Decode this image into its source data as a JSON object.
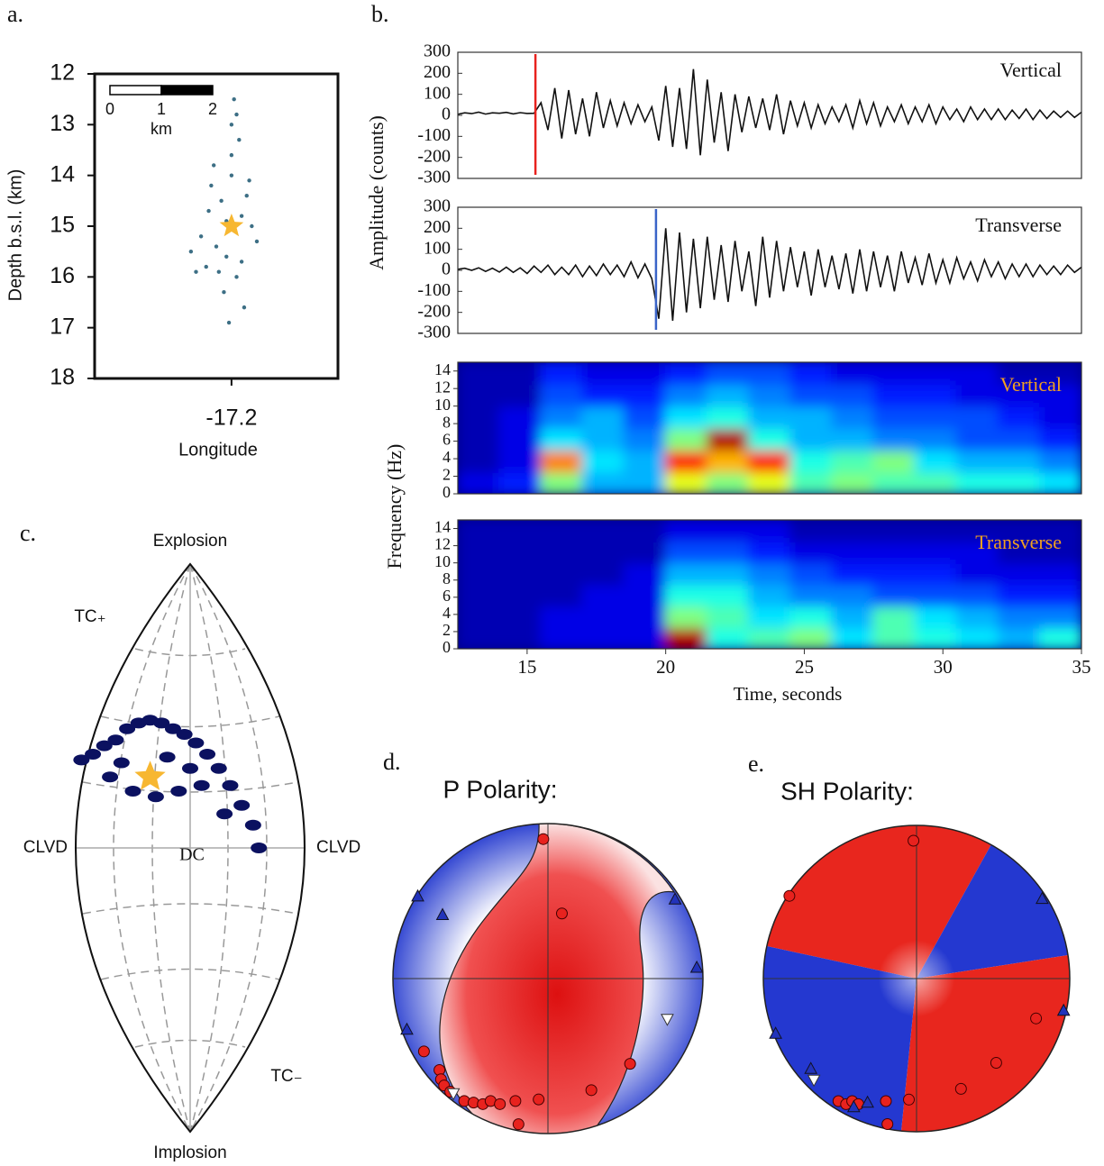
{
  "chart_data": [
    {
      "type": "scatter",
      "panel": "a.",
      "ylabel": "Depth b.s.l. (km)",
      "xlabel": "Longitude",
      "xlim": [
        -17.227,
        -17.179
      ],
      "ylim": [
        18,
        12
      ],
      "xticks": [
        -17.2
      ],
      "yticks": [
        12,
        13,
        14,
        15,
        16,
        17,
        18
      ],
      "series": [
        {
          "color": "#3d6f85",
          "x": [
            -17.204,
            -17.202,
            -17.2,
            -17.198,
            -17.206,
            -17.196,
            -17.201,
            -17.199,
            -17.203,
            -17.197,
            -17.205,
            -17.2,
            -17.2015,
            -17.1985,
            -17.208,
            -17.195,
            -17.2045,
            -17.1975,
            -17.2025,
            -17.1995,
            -17.207,
            -17.1965,
            -17.2005,
            -17.2035,
            -17.199,
            -17.201,
            -17.198,
            -17.2
          ],
          "y": [
            14.2,
            14.5,
            14.0,
            14.8,
            15.2,
            15.0,
            15.6,
            16.0,
            15.4,
            14.4,
            15.8,
            13.6,
            16.3,
            13.3,
            15.5,
            15.3,
            14.7,
            16.6,
            15.9,
            12.5,
            15.9,
            14.1,
            16.9,
            13.8,
            12.8,
            14.9,
            15.7,
            13.0
          ]
        }
      ],
      "star": {
        "x": -17.2,
        "y": 15,
        "color": "#f7b731"
      },
      "scalebar": {
        "ticks": [
          0,
          1,
          2
        ],
        "label": "km"
      }
    },
    {
      "type": "line",
      "panel": "b.",
      "ylabel": "Amplitude (counts)",
      "annotation": "Vertical",
      "color": "#111111",
      "xlim": [
        12.5,
        35
      ],
      "ylim": [
        -300,
        300
      ],
      "yticks": [
        -300,
        -200,
        -100,
        0,
        100,
        200,
        300
      ],
      "pick": 15.3,
      "pick_color": "#e8221e",
      "x": [
        12.5,
        12.75,
        13,
        13.25,
        13.5,
        13.75,
        14,
        14.25,
        14.5,
        14.75,
        15,
        15.25,
        15.5,
        15.75,
        16,
        16.25,
        16.5,
        16.75,
        17,
        17.25,
        17.5,
        17.75,
        18,
        18.25,
        18.5,
        18.75,
        19,
        19.25,
        19.5,
        19.75,
        20,
        20.25,
        20.5,
        20.75,
        21,
        21.25,
        21.5,
        21.75,
        22,
        22.25,
        22.5,
        22.75,
        23,
        23.25,
        23.5,
        23.75,
        24,
        24.25,
        24.5,
        24.75,
        25,
        25.25,
        25.5,
        25.75,
        26,
        26.25,
        26.5,
        26.75,
        27,
        27.25,
        27.5,
        27.75,
        28,
        28.25,
        28.5,
        28.75,
        29,
        29.25,
        29.5,
        29.75,
        30,
        30.25,
        30.5,
        30.75,
        31,
        31.25,
        31.5,
        31.75,
        32,
        32.25,
        32.5,
        32.75,
        33,
        33.25,
        33.5,
        33.75,
        34,
        34.25,
        34.5,
        34.75,
        35
      ],
      "values": [
        5,
        12,
        8,
        15,
        6,
        12,
        10,
        14,
        7,
        13,
        9,
        10,
        60,
        -70,
        130,
        -110,
        120,
        -90,
        80,
        -100,
        110,
        -60,
        70,
        -50,
        60,
        -40,
        50,
        -30,
        40,
        -120,
        140,
        -150,
        130,
        -160,
        220,
        -190,
        170,
        -130,
        110,
        -170,
        100,
        -80,
        90,
        -60,
        80,
        -70,
        100,
        -90,
        70,
        -50,
        60,
        -60,
        50,
        -40,
        40,
        -30,
        50,
        -60,
        70,
        -40,
        60,
        -50,
        40,
        -30,
        50,
        -40,
        40,
        -30,
        50,
        -40,
        40,
        -20,
        30,
        -30,
        40,
        -20,
        30,
        -20,
        30,
        -20,
        25,
        -15,
        30,
        -20,
        25,
        -15,
        20,
        -10,
        20,
        -10,
        15
      ]
    },
    {
      "type": "line",
      "annotation": "Transverse",
      "color": "#111111",
      "xlim": [
        12.5,
        35
      ],
      "ylim": [
        -300,
        300
      ],
      "yticks": [
        -300,
        -200,
        -100,
        0,
        100,
        200,
        300
      ],
      "pick": 19.65,
      "pick_color": "#3a64c8",
      "x": [
        12.5,
        12.75,
        13,
        13.25,
        13.5,
        13.75,
        14,
        14.25,
        14.5,
        14.75,
        15,
        15.25,
        15.5,
        15.75,
        16,
        16.25,
        16.5,
        16.75,
        17,
        17.25,
        17.5,
        17.75,
        18,
        18.25,
        18.5,
        18.75,
        19,
        19.25,
        19.5,
        19.75,
        20,
        20.25,
        20.5,
        20.75,
        21,
        21.25,
        21.5,
        21.75,
        22,
        22.25,
        22.5,
        22.75,
        23,
        23.25,
        23.5,
        23.75,
        24,
        24.25,
        24.5,
        24.75,
        25,
        25.25,
        25.5,
        25.75,
        26,
        26.25,
        26.5,
        26.75,
        27,
        27.25,
        27.5,
        27.75,
        28,
        28.25,
        28.5,
        28.75,
        29,
        29.25,
        29.5,
        29.75,
        30,
        30.25,
        30.5,
        30.75,
        31,
        31.25,
        31.5,
        31.75,
        32,
        32.25,
        32.5,
        32.75,
        33,
        33.25,
        33.5,
        33.75,
        34,
        34.25,
        34.5,
        34.75,
        35
      ],
      "values": [
        5,
        10,
        0,
        12,
        -5,
        10,
        -8,
        15,
        -10,
        12,
        -15,
        20,
        -10,
        25,
        -20,
        15,
        -20,
        25,
        -30,
        20,
        -25,
        30,
        -20,
        25,
        -30,
        40,
        -35,
        30,
        -40,
        -230,
        200,
        -240,
        180,
        -200,
        150,
        -180,
        160,
        -140,
        120,
        -150,
        140,
        -100,
        90,
        -170,
        160,
        -130,
        140,
        -100,
        110,
        -80,
        90,
        -120,
        100,
        -80,
        70,
        -90,
        80,
        -110,
        100,
        -100,
        90,
        -80,
        70,
        -100,
        90,
        -60,
        60,
        -70,
        80,
        -60,
        50,
        -60,
        60,
        -40,
        40,
        -50,
        50,
        -30,
        40,
        -40,
        30,
        -30,
        30,
        -30,
        25,
        -20,
        20,
        -20,
        25,
        -10,
        15
      ]
    },
    {
      "type": "heatmap",
      "ylabel": "Frequency (Hz)",
      "annotation": "Vertical",
      "annotation_color": "#f0a020",
      "xlim": [
        12.5,
        35
      ],
      "ylim": [
        0,
        15
      ],
      "yticks": [
        0,
        2,
        4,
        6,
        8,
        10,
        12,
        14
      ],
      "zlim": [
        0,
        1
      ],
      "x_edges": [
        12.5,
        14,
        15.5,
        17,
        18.5,
        20,
        21.5,
        23,
        24.5,
        26,
        27.5,
        29,
        30.5,
        32,
        33.5,
        35
      ],
      "y_edges": [
        0,
        2.5,
        5,
        7.5,
        10,
        12.5,
        15
      ],
      "z": [
        [
          0.1,
          0.15,
          0.5,
          0.3,
          0.3,
          0.6,
          0.5,
          0.6,
          0.45,
          0.5,
          0.45,
          0.45,
          0.4,
          0.4,
          0.35
        ],
        [
          0.05,
          0.1,
          0.75,
          0.35,
          0.3,
          0.85,
          0.7,
          0.85,
          0.4,
          0.45,
          0.5,
          0.35,
          0.3,
          0.3,
          0.25
        ],
        [
          0.05,
          0.1,
          0.35,
          0.3,
          0.25,
          0.5,
          0.95,
          0.4,
          0.3,
          0.3,
          0.25,
          0.25,
          0.2,
          0.2,
          0.15
        ],
        [
          0.05,
          0.1,
          0.25,
          0.3,
          0.2,
          0.35,
          0.4,
          0.3,
          0.3,
          0.25,
          0.2,
          0.2,
          0.2,
          0.15,
          0.1
        ],
        [
          0.05,
          0.05,
          0.2,
          0.15,
          0.15,
          0.25,
          0.3,
          0.25,
          0.2,
          0.2,
          0.15,
          0.15,
          0.1,
          0.1,
          0.1
        ],
        [
          0.05,
          0.05,
          0.15,
          0.1,
          0.1,
          0.15,
          0.2,
          0.2,
          0.15,
          0.1,
          0.1,
          0.1,
          0.1,
          0.05,
          0.05
        ]
      ]
    },
    {
      "type": "heatmap",
      "annotation": "Transverse",
      "annotation_color": "#f0a020",
      "xlabel": "Time, seconds",
      "xlim": [
        12.5,
        35
      ],
      "ylim": [
        0,
        15
      ],
      "xticks": [
        15,
        20,
        25,
        30,
        35
      ],
      "yticks": [
        0,
        2,
        4,
        6,
        8,
        10,
        12,
        14
      ],
      "zlim": [
        0,
        1
      ],
      "x_edges": [
        12.5,
        14,
        15.5,
        17,
        18.5,
        20,
        21.5,
        23,
        24.5,
        26,
        27.5,
        29,
        30.5,
        32,
        33.5,
        35
      ],
      "y_edges": [
        0,
        2.5,
        5,
        7.5,
        10,
        12.5,
        15
      ],
      "z": [
        [
          0.05,
          0.05,
          0.1,
          0.1,
          0.1,
          0.95,
          0.4,
          0.45,
          0.5,
          0.35,
          0.45,
          0.4,
          0.35,
          0.3,
          0.4
        ],
        [
          0.05,
          0.05,
          0.1,
          0.1,
          0.1,
          0.5,
          0.45,
          0.35,
          0.4,
          0.3,
          0.45,
          0.35,
          0.3,
          0.25,
          0.25
        ],
        [
          0.05,
          0.05,
          0.05,
          0.1,
          0.1,
          0.4,
          0.4,
          0.3,
          0.25,
          0.25,
          0.2,
          0.2,
          0.2,
          0.15,
          0.15
        ],
        [
          0.05,
          0.05,
          0.05,
          0.05,
          0.1,
          0.3,
          0.3,
          0.25,
          0.2,
          0.15,
          0.15,
          0.15,
          0.1,
          0.1,
          0.1
        ],
        [
          0.05,
          0.05,
          0.05,
          0.05,
          0.05,
          0.2,
          0.2,
          0.15,
          0.1,
          0.1,
          0.1,
          0.1,
          0.1,
          0.05,
          0.05
        ],
        [
          0.05,
          0.05,
          0.05,
          0.05,
          0.05,
          0.1,
          0.1,
          0.1,
          0.05,
          0.05,
          0.05,
          0.05,
          0.05,
          0.05,
          0.05
        ]
      ]
    },
    {
      "type": "hudson",
      "panel": "c.",
      "top": "Explosion",
      "bottom": "Implosion",
      "left": "CLVD",
      "right": "CLVD",
      "center": "DC",
      "tc_plus": "TC₊",
      "tc_minus": "TC₋",
      "series": [
        {
          "color": "#0b1160",
          "x": [
            -0.95,
            -0.85,
            -0.75,
            -0.65,
            -0.55,
            -0.45,
            -0.35,
            -0.25,
            -0.15,
            -0.05,
            0.05,
            0.15,
            0.25,
            0.35,
            0.45,
            0.55,
            0.6,
            -0.7,
            -0.5,
            -0.3,
            -0.1,
            0.1,
            0.3,
            -0.6,
            -0.2,
            0.0
          ],
          "y": [
            0.31,
            0.33,
            0.36,
            0.38,
            0.42,
            0.44,
            0.45,
            0.44,
            0.42,
            0.4,
            0.37,
            0.33,
            0.28,
            0.22,
            0.15,
            0.08,
            0.0,
            0.25,
            0.2,
            0.18,
            0.2,
            0.22,
            0.12,
            0.3,
            0.32,
            0.28
          ]
        }
      ],
      "star": {
        "x": -0.35,
        "y": 0.25,
        "color": "#f7b731"
      }
    },
    {
      "type": "beachball",
      "panel": "d.",
      "title": "P Polarity:",
      "series": [
        {
          "color": "#e8221e",
          "marker": "circle",
          "x": [
            -0.03,
            0.09,
            -0.8,
            -0.7,
            -0.69,
            -0.67,
            -0.63,
            -0.54,
            -0.48,
            -0.42,
            -0.37,
            -0.31,
            -0.21,
            -0.19,
            -0.06,
            0.28,
            0.53
          ],
          "y": [
            0.9,
            0.42,
            -0.47,
            -0.59,
            -0.65,
            -0.69,
            -0.73,
            -0.79,
            -0.8,
            -0.81,
            -0.79,
            -0.81,
            -0.79,
            -0.94,
            -0.78,
            -0.72,
            -0.55
          ]
        },
        {
          "color": "#2233bb",
          "marker": "triangle",
          "x": [
            -0.84,
            -0.68,
            0.82,
            0.96,
            -0.91
          ],
          "y": [
            0.53,
            0.41,
            0.51,
            0.07,
            -0.33
          ]
        },
        {
          "color": "#ffffff",
          "marker": "triangle-down",
          "x": [
            0.77,
            -0.61
          ],
          "y": [
            -0.26,
            -0.74
          ]
        }
      ]
    },
    {
      "type": "beachball",
      "panel": "e.",
      "title": "SH Polarity:",
      "series": [
        {
          "color": "#e8221e",
          "marker": "circle",
          "x": [
            -0.02,
            -0.83,
            0.78,
            0.52,
            0.29,
            -0.05,
            -0.19,
            -0.2,
            -0.51,
            -0.46,
            -0.42,
            -0.38
          ],
          "y": [
            0.9,
            0.54,
            -0.26,
            -0.55,
            -0.72,
            -0.79,
            -0.95,
            -0.8,
            -0.8,
            -0.82,
            -0.8,
            -0.82
          ]
        },
        {
          "color": "#2233bb",
          "marker": "triangle",
          "x": [
            0.82,
            0.96,
            -0.92,
            -0.69,
            -0.41,
            -0.32
          ],
          "y": [
            0.52,
            -0.21,
            -0.36,
            -0.59,
            -0.84,
            -0.81
          ]
        },
        {
          "color": "#ffffff",
          "marker": "triangle-down",
          "x": [
            -0.67
          ],
          "y": [
            -0.66
          ]
        }
      ]
    }
  ]
}
